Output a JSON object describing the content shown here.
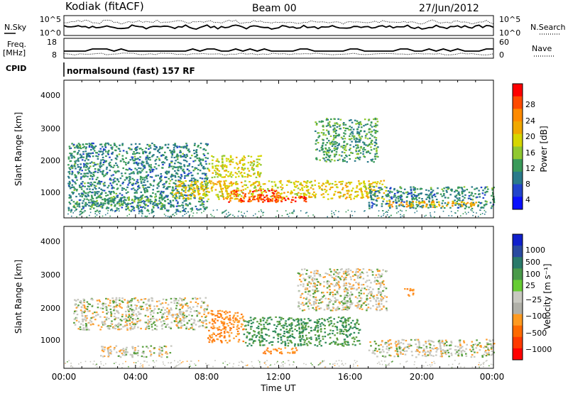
{
  "header": {
    "station": "Kodiak (fitACF)",
    "beam": "Beam 00",
    "date": "27/Jun/2012"
  },
  "panels": {
    "nsky_label": "N.Sky",
    "nsearch_label": "N.Search",
    "nsky_ticks": [
      "10^5",
      "10^0"
    ],
    "nsearch_ticks": [
      "10^5",
      "10^0"
    ],
    "freq_label": "Freq.",
    "freq_unit": "[MHz]",
    "freq_ticks": [
      "18",
      "8"
    ],
    "nave_label": "Nave",
    "nave_ticks": [
      "60",
      "0"
    ],
    "cpid_label": "CPID",
    "cpid_text": "normalsound (fast) 157 RF"
  },
  "power_colorbar": {
    "label": "Power [dB]",
    "ticks": [
      "28",
      "24",
      "20",
      "16",
      "12",
      "8",
      "4"
    ],
    "colors": [
      "#ff0000",
      "#ff4a00",
      "#ff8a00",
      "#f0a800",
      "#d6d600",
      "#90c830",
      "#3a9a5a",
      "#2a7a8a",
      "#2244cc",
      "#0a10ff"
    ]
  },
  "velocity_colorbar": {
    "label": "Velocity [m s⁻¹]",
    "ticks": [
      "1000",
      "500",
      "100",
      "25",
      "−25",
      "−100",
      "−500",
      "−1000"
    ],
    "colors": [
      "#1020cc",
      "#2a4aa0",
      "#2a7a6a",
      "#4a9a4a",
      "#66cc33",
      "#c8c8c0",
      "#b0b0a8",
      "#ff9a20",
      "#ff6a00",
      "#ff3a00",
      "#ff0000"
    ]
  },
  "chart_data": {
    "type": "heatmap",
    "title": "Kodiak (fitACF)  Beam 00  27/Jun/2012",
    "xlabel": "Time UT",
    "ylabel": "Slant Range [km]",
    "x_ticks": [
      "00:00",
      "04:00",
      "08:00",
      "12:00",
      "16:00",
      "20:00",
      "00:00"
    ],
    "y_ticks": [
      "4000",
      "3000",
      "2000",
      "1000"
    ],
    "xlim_hours": [
      0,
      24
    ],
    "ylim_km": [
      180,
      4600
    ],
    "power_panel": {
      "colorbar": "Power [dB]",
      "range_db": [
        0,
        30
      ],
      "regions": [
        {
          "t_start": 0.2,
          "t_end": 8.0,
          "r_min": 400,
          "r_max": 2600,
          "level_db": 8
        },
        {
          "t_start": 1.5,
          "t_end": 6.0,
          "r_min": 550,
          "r_max": 900,
          "level_db": 10
        },
        {
          "t_start": 6.0,
          "t_end": 18.0,
          "r_min": 800,
          "r_max": 1400,
          "level_db": 18
        },
        {
          "t_start": 8.0,
          "t_end": 11.0,
          "r_min": 1500,
          "r_max": 2200,
          "level_db": 16
        },
        {
          "t_start": 9.0,
          "t_end": 12.0,
          "r_min": 700,
          "r_max": 1100,
          "level_db": 26
        },
        {
          "t_start": 11.0,
          "t_end": 13.5,
          "r_min": 700,
          "r_max": 900,
          "level_db": 28
        },
        {
          "t_start": 14.0,
          "t_end": 17.5,
          "r_min": 2000,
          "r_max": 3400,
          "level_db": 10
        },
        {
          "t_start": 17.0,
          "t_end": 24.0,
          "r_min": 500,
          "r_max": 1200,
          "level_db": 8
        },
        {
          "t_start": 18.0,
          "t_end": 23.0,
          "r_min": 550,
          "r_max": 750,
          "level_db": 20
        }
      ]
    },
    "velocity_panel": {
      "colorbar": "Velocity [m s⁻¹]",
      "regions": [
        {
          "t_start": 0.5,
          "t_end": 8.0,
          "r_min": 1400,
          "r_max": 2400,
          "velocity": 0
        },
        {
          "t_start": 2.0,
          "t_end": 6.0,
          "r_min": 550,
          "r_max": 900,
          "velocity": 0
        },
        {
          "t_start": 8.0,
          "t_end": 10.0,
          "r_min": 1000,
          "r_max": 2000,
          "velocity": -100
        },
        {
          "t_start": 10.0,
          "t_end": 16.5,
          "r_min": 900,
          "r_max": 1800,
          "velocity": 100
        },
        {
          "t_start": 11.0,
          "t_end": 13.0,
          "r_min": 650,
          "r_max": 850,
          "velocity": -100
        },
        {
          "t_start": 13.0,
          "t_end": 18.0,
          "r_min": 2000,
          "r_max": 3300,
          "velocity": 0
        },
        {
          "t_start": 17.0,
          "t_end": 24.0,
          "r_min": 550,
          "r_max": 1100,
          "velocity": 0
        },
        {
          "t_start": 19.0,
          "t_end": 19.5,
          "r_min": 2400,
          "r_max": 2700,
          "velocity": -100
        }
      ]
    }
  }
}
